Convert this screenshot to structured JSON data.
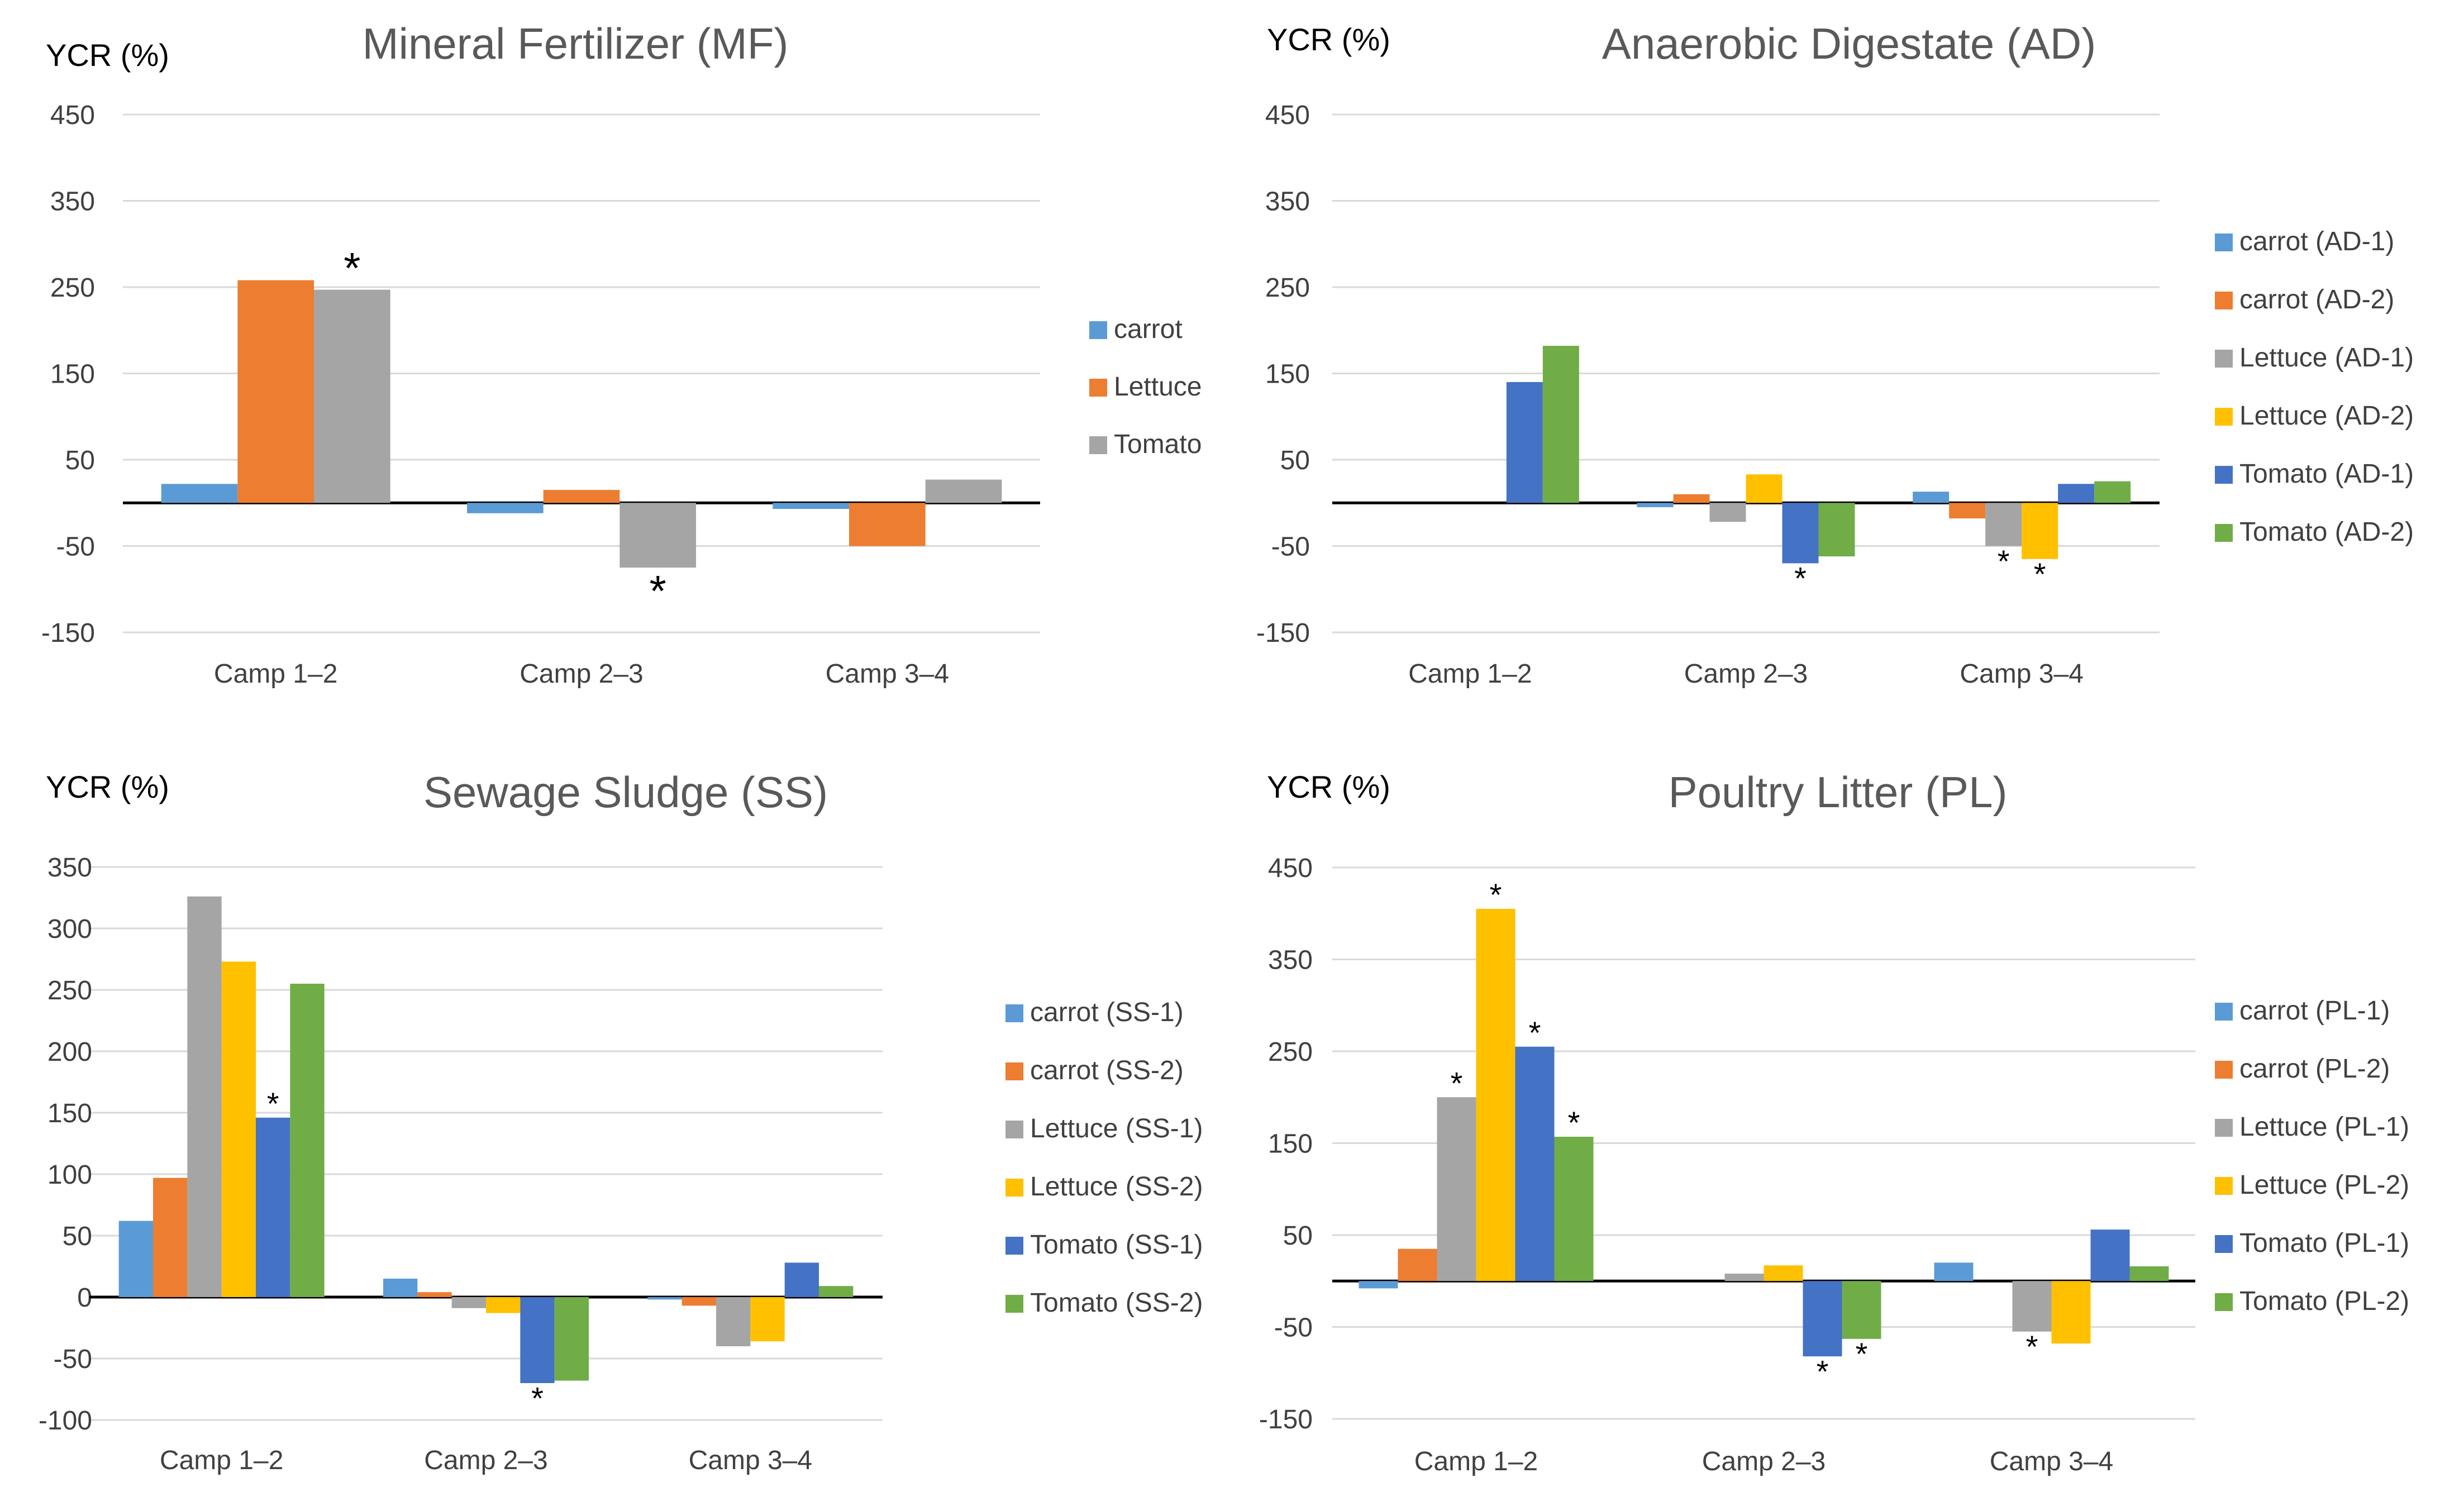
{
  "chart_data": [
    {
      "type": "bar",
      "title": "Mineral Fertilizer   (MF)",
      "ylabel": "YCR (%)",
      "xlabel": "",
      "categories": [
        "Camp 1–2",
        "Camp 2–3",
        "Camp 3–4"
      ],
      "ylim": [
        -150,
        450
      ],
      "yticks": [
        450,
        350,
        250,
        150,
        50,
        -50,
        -150
      ],
      "legend": "right",
      "series": [
        {
          "name": "carrot",
          "color": "#5b9bd5",
          "values": [
            22,
            -12,
            -7
          ]
        },
        {
          "name": "Lettuce",
          "color": "#ed7d31",
          "values": [
            258,
            15,
            -50
          ]
        },
        {
          "name": "Tomato",
          "color": "#a5a5a5",
          "values": [
            247,
            -75,
            27
          ]
        }
      ],
      "annotations": [
        {
          "text": "*",
          "category": 0,
          "series": 2,
          "position": "above"
        },
        {
          "text": "*",
          "category": 1,
          "series": 2,
          "position": "below"
        }
      ]
    },
    {
      "type": "bar",
      "title": "Anaerobic Digestate  (AD)",
      "ylabel": "YCR (%)",
      "xlabel": "",
      "categories": [
        "Camp 1–2",
        "Camp 2–3",
        "Camp 3–4"
      ],
      "ylim": [
        -150,
        450
      ],
      "yticks": [
        450,
        350,
        250,
        150,
        50,
        -50,
        -150
      ],
      "legend": "right",
      "series": [
        {
          "name": "carrot (AD-1)",
          "color": "#5b9bd5",
          "values": [
            0,
            -5,
            13
          ]
        },
        {
          "name": "carrot  (AD-2)",
          "color": "#ed7d31",
          "values": [
            0,
            10,
            -18
          ]
        },
        {
          "name": "Lettuce (AD-1)",
          "color": "#a5a5a5",
          "values": [
            0,
            -22,
            -50
          ]
        },
        {
          "name": "Lettuce  (AD-2)",
          "color": "#ffc000",
          "values": [
            0,
            33,
            -65
          ]
        },
        {
          "name": "Tomato (AD-1)",
          "color": "#4472c4",
          "values": [
            140,
            -70,
            22
          ]
        },
        {
          "name": "Tomato  (AD-2)",
          "color": "#70ad47",
          "values": [
            182,
            -62,
            25
          ]
        }
      ],
      "annotations": [
        {
          "text": "*",
          "category": 1,
          "series": 4,
          "position": "below"
        },
        {
          "text": "*",
          "category": 2,
          "series": 2,
          "position": "below"
        },
        {
          "text": "*",
          "category": 2,
          "series": 3,
          "position": "below"
        }
      ]
    },
    {
      "type": "bar",
      "title": "Sewage Sludge (SS)",
      "ylabel": "YCR (%)",
      "xlabel": "",
      "categories": [
        "Camp 1–2",
        "Camp 2–3",
        "Camp 3–4"
      ],
      "ylim": [
        -100,
        350
      ],
      "yticks": [
        350,
        300,
        250,
        200,
        150,
        100,
        50,
        0,
        -50,
        -100
      ],
      "legend": "right",
      "series": [
        {
          "name": "carrot (SS-1)",
          "color": "#5b9bd5",
          "values": [
            62,
            15,
            -2
          ]
        },
        {
          "name": "carrot (SS-2)",
          "color": "#ed7d31",
          "values": [
            97,
            4,
            -7
          ]
        },
        {
          "name": "Lettuce (SS-1)",
          "color": "#a5a5a5",
          "values": [
            326,
            -9,
            -40
          ]
        },
        {
          "name": "Lettuce (SS-2)",
          "color": "#ffc000",
          "values": [
            273,
            -13,
            -36
          ]
        },
        {
          "name": "Tomato  (SS-1)",
          "color": "#4472c4",
          "values": [
            146,
            -70,
            28
          ]
        },
        {
          "name": "Tomato (SS-2)",
          "color": "#70ad47",
          "values": [
            255,
            -68,
            9
          ]
        }
      ],
      "annotations": [
        {
          "text": "*",
          "category": 0,
          "series": 4,
          "position": "above"
        },
        {
          "text": "*",
          "category": 1,
          "series": 4,
          "position": "below"
        }
      ]
    },
    {
      "type": "bar",
      "title": "Poultry Litter (PL)",
      "ylabel": "YCR (%)",
      "xlabel": "",
      "categories": [
        "Camp 1–2",
        "Camp 2–3",
        "Camp 3–4"
      ],
      "ylim": [
        -150,
        450
      ],
      "yticks": [
        450,
        350,
        250,
        150,
        50,
        -50,
        -150
      ],
      "legend": "right",
      "series": [
        {
          "name": "carrot (PL-1)",
          "color": "#5b9bd5",
          "values": [
            -8,
            0,
            20
          ]
        },
        {
          "name": "carrot (PL-2)",
          "color": "#ed7d31",
          "values": [
            35,
            0,
            0
          ]
        },
        {
          "name": "Lettuce (PL-1)",
          "color": "#a5a5a5",
          "values": [
            200,
            8,
            -55
          ]
        },
        {
          "name": "Lettuce (PL-2)",
          "color": "#ffc000",
          "values": [
            405,
            17,
            -68
          ]
        },
        {
          "name": "Tomato (PL-1)",
          "color": "#4472c4",
          "values": [
            255,
            -82,
            56
          ]
        },
        {
          "name": "Tomato (PL-2)",
          "color": "#70ad47",
          "values": [
            157,
            -63,
            16
          ]
        }
      ],
      "annotations": [
        {
          "text": "*",
          "category": 0,
          "series": 2,
          "position": "above"
        },
        {
          "text": "*",
          "category": 0,
          "series": 3,
          "position": "above"
        },
        {
          "text": "*",
          "category": 0,
          "series": 4,
          "position": "above"
        },
        {
          "text": "*",
          "category": 0,
          "series": 5,
          "position": "above"
        },
        {
          "text": "*",
          "category": 1,
          "series": 4,
          "position": "below"
        },
        {
          "text": "*",
          "category": 1,
          "series": 5,
          "position": "below"
        },
        {
          "text": "*",
          "category": 2,
          "series": 2,
          "position": "below"
        }
      ]
    }
  ]
}
